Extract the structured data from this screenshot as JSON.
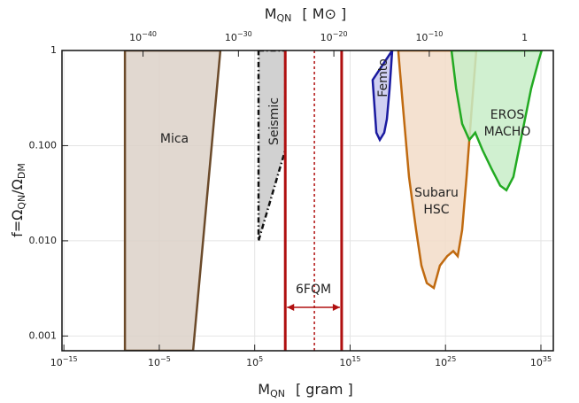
{
  "chart_data": {
    "type": "region",
    "log_x": true,
    "log_y": true,
    "grid": true,
    "xlabel": [
      "M",
      "QN",
      "[ gram ]"
    ],
    "x2label": [
      "M",
      "QN",
      "[ M⊙ ]"
    ],
    "ylabel": [
      "f=Ω",
      "QN",
      "/Ω",
      "DM"
    ],
    "xlim": [
      6.3e-16,
      2e+36
    ],
    "xticks": [
      {
        "value": 1e-15,
        "label": "10",
        "sup": "−15"
      },
      {
        "value": 1e-05,
        "label": "10",
        "sup": "−5"
      },
      {
        "value": 100000.0,
        "label": "10",
        "sup": "5"
      },
      {
        "value": 1000000000000000.0,
        "label": "10",
        "sup": "15"
      },
      {
        "value": 1e+25,
        "label": "10",
        "sup": "25"
      },
      {
        "value": 1e+35,
        "label": "10",
        "sup": "35"
      }
    ],
    "x2lim": [
      3.2e-49,
      1000
    ],
    "x2ticks": [
      {
        "value": 1e-40,
        "label": "10",
        "sup": "−40"
      },
      {
        "value": 1e-30,
        "label": "10",
        "sup": "−30"
      },
      {
        "value": 1e-20,
        "label": "10",
        "sup": "−20"
      },
      {
        "value": 1e-10,
        "label": "10",
        "sup": "−10"
      },
      1
    ],
    "ylim": [
      0.0007,
      1
    ],
    "yticks": [
      0.001,
      {
        "value": 0.01,
        "label": "0.010"
      },
      {
        "value": 0.1,
        "label": "0.100"
      },
      1
    ],
    "regions": [
      {
        "name": [
          "Mica"
        ],
        "color": "#6b4a2a",
        "fill": "#dcd1c8",
        "text_color": "#7a5530",
        "style": "solid",
        "x": [
          2.5e-09,
          25,
          0.035,
          2.5e-09
        ],
        "y": [
          1,
          1,
          0.0007,
          0.0007
        ]
      },
      {
        "name": [
          "Seismic"
        ],
        "color": "#111111",
        "fill": "#c9c9c9",
        "text_color": "#111111",
        "style": "dashdot",
        "x": [
          250000.0,
          160000000.0,
          160000000.0,
          250000.0
        ],
        "y": [
          1,
          1,
          0.09,
          0.01
        ]
      },
      {
        "name": [
          "Femto"
        ],
        "color": "#1a1aa0",
        "fill": "#c8c8f0",
        "text_color": "#1a1aa0",
        "style": "solid",
        "x": [
          2.3e+17,
          5.6e+17,
          1.3e+18,
          3.8e+18,
          7.2e+18,
          1.4e+19,
          2.6e+19
        ],
        "y": [
          0.49,
          0.137,
          0.115,
          0.137,
          0.19,
          0.4,
          1
        ]
      },
      {
        "name": [
          "Subaru",
          "HSC"
        ],
        "color": "#c06a10",
        "fill": "#f2dcc8",
        "text_color": "#c06a10",
        "style": "solid",
        "x": [
          1.1e+20,
          3.4e+20,
          1.5e+21,
          8.3e+21,
          3e+22,
          1.1e+23,
          6e+23,
          2.6e+24,
          1.5e+25,
          6.6e+25,
          1.9e+26,
          5.5e+26,
          1.6e+27,
          5.8e+27,
          1.7e+28
        ],
        "y": [
          1,
          0.26,
          0.047,
          0.013,
          0.0055,
          0.0036,
          0.0032,
          0.0055,
          0.0069,
          0.0078,
          0.0069,
          0.013,
          0.047,
          0.26,
          1
        ]
      },
      {
        "name": [
          "EROS",
          "MACHO"
        ],
        "color": "#22aa22",
        "fill": "#c8edc8",
        "text_color": "#22aa22",
        "style": "solid",
        "x": [
          4.3e+25,
          1.3e+26,
          5.5e+26,
          3.1e+27,
          1.3e+28,
          7.6e+28,
          6.3e+29,
          5.4e+30,
          2.4e+31,
          1.3e+32,
          1.1e+33,
          9.5e+33,
          5.3e+34,
          1.2e+35
        ],
        "y": [
          1,
          0.4,
          0.17,
          0.115,
          0.137,
          0.09,
          0.058,
          0.038,
          0.034,
          0.047,
          0.137,
          0.4,
          0.76,
          1
        ]
      }
    ],
    "bounds": {
      "name": "6FQM",
      "color": "#b01010",
      "x": [
        160000000.0,
        130000000000000.0
      ],
      "mid": 180000000000.0
    }
  }
}
